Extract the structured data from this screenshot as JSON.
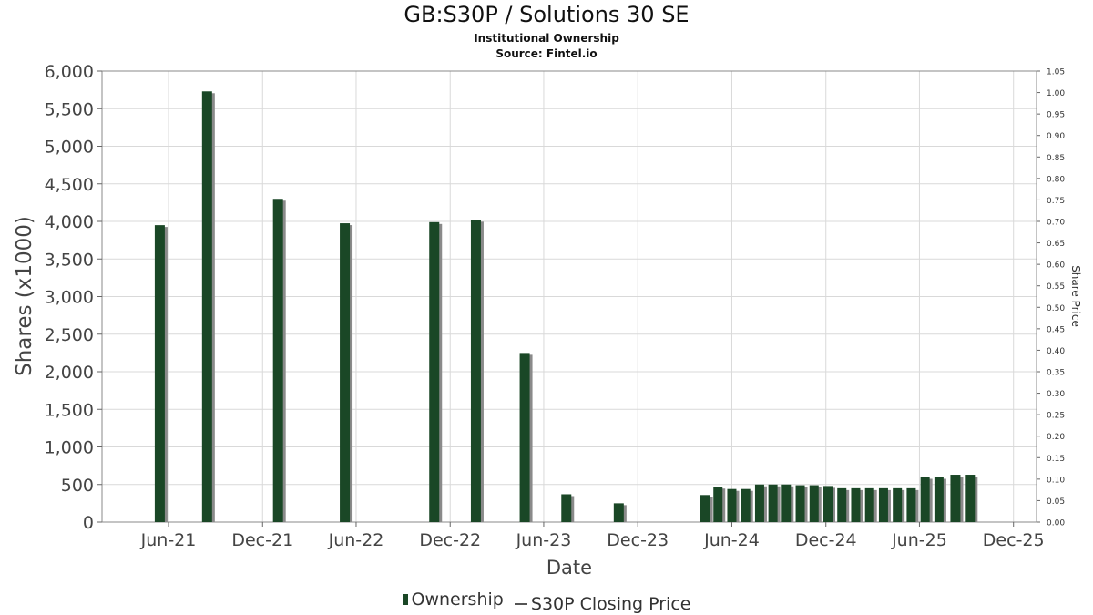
{
  "chart_data": {
    "type": "bar",
    "title": "GB:S30P / Solutions 30 SE",
    "subtitle_1": "Institutional Ownership",
    "subtitle_2": "Source: Fintel.io",
    "xlabel": "Date",
    "ylabel": "Shares (x1000)",
    "y2label": "Share Price",
    "ylim": [
      0,
      6000
    ],
    "y2lim": [
      0,
      1.05
    ],
    "yticks": [
      "0",
      "500",
      "1,000",
      "1,500",
      "2,000",
      "2,500",
      "3,000",
      "3,500",
      "4,000",
      "4,500",
      "5,000",
      "5,500",
      "6,000"
    ],
    "y2ticks": [
      "0.00",
      "0.05",
      "0.10",
      "0.15",
      "0.20",
      "0.25",
      "0.30",
      "0.35",
      "0.40",
      "0.45",
      "0.50",
      "0.55",
      "0.60",
      "0.65",
      "0.70",
      "0.75",
      "0.80",
      "0.85",
      "0.90",
      "0.95",
      "1.00",
      "1.05"
    ],
    "xtick_labels": [
      "Jun-21",
      "Dec-21",
      "Jun-22",
      "Dec-22",
      "Jun-23",
      "Dec-23",
      "Jun-24",
      "Dec-24",
      "Jun-25",
      "Dec-25"
    ],
    "grid": true,
    "legend_position": "bottom",
    "colors": {
      "bar": "#1a4726",
      "bar_shadow": "#8a8a8a",
      "grid": "#d9d9d9",
      "line": "#555555"
    },
    "series": [
      {
        "name": "Ownership",
        "points": [
          [
            "2021-05-15",
            3950
          ],
          [
            "2021-08-15",
            5730
          ],
          [
            "2021-12-31",
            4300
          ],
          [
            "2022-05-10",
            3975
          ],
          [
            "2022-10-31",
            3990
          ],
          [
            "2023-01-20",
            4020
          ],
          [
            "2023-04-25",
            2250
          ],
          [
            "2023-07-15",
            370
          ],
          [
            "2023-10-25",
            250
          ],
          [
            "2024-04-10",
            360
          ],
          [
            "2024-05-05",
            470
          ],
          [
            "2024-06-01",
            440
          ],
          [
            "2024-06-28",
            440
          ],
          [
            "2024-07-25",
            500
          ],
          [
            "2024-08-20",
            500
          ],
          [
            "2024-09-15",
            500
          ],
          [
            "2024-10-12",
            490
          ],
          [
            "2024-11-08",
            490
          ],
          [
            "2024-12-05",
            480
          ],
          [
            "2025-01-01",
            450
          ],
          [
            "2025-01-28",
            450
          ],
          [
            "2025-02-24",
            450
          ],
          [
            "2025-03-23",
            450
          ],
          [
            "2025-04-19",
            450
          ],
          [
            "2025-05-16",
            450
          ],
          [
            "2025-06-12",
            600
          ],
          [
            "2025-07-09",
            600
          ],
          [
            "2025-08-10",
            630
          ],
          [
            "2025-09-08",
            630
          ]
        ]
      }
    ]
  },
  "legend": {
    "ownership_label": "Ownership",
    "price_label": "S30P Closing Price"
  }
}
